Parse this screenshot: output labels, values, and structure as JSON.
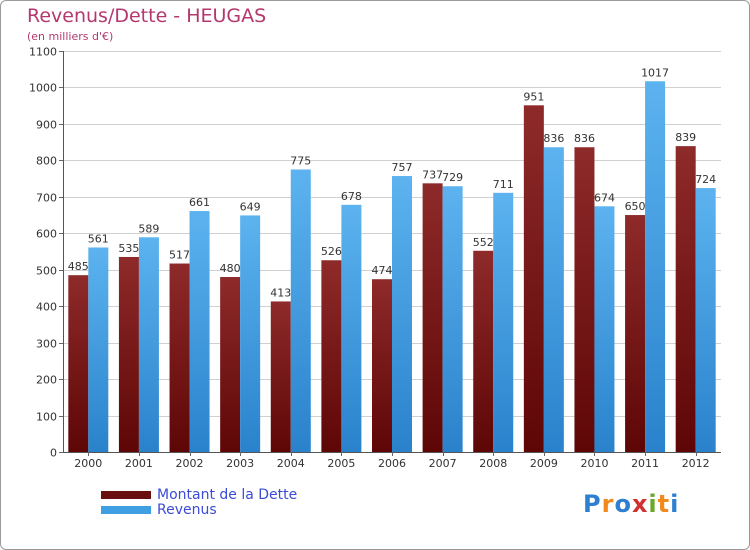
{
  "header": {
    "title": "Revenus/Dette - HEUGAS",
    "subtitle": "(en milliers d'€)"
  },
  "chart_data": {
    "type": "bar",
    "categories": [
      "2000",
      "2001",
      "2002",
      "2003",
      "2004",
      "2005",
      "2006",
      "2007",
      "2008",
      "2009",
      "2010",
      "2011",
      "2012"
    ],
    "series": [
      {
        "name": "Montant de la Dette",
        "values": [
          485,
          535,
          517,
          480,
          413,
          526,
          474,
          737,
          552,
          951,
          836,
          650,
          839
        ],
        "color": "#7a1414"
      },
      {
        "name": "Revenus",
        "values": [
          561,
          589,
          661,
          649,
          775,
          678,
          757,
          729,
          711,
          836,
          674,
          1017,
          724
        ],
        "color": "#3f9fe3"
      }
    ],
    "ylim": [
      0,
      1100
    ],
    "yticks": [
      0,
      100,
      200,
      300,
      400,
      500,
      600,
      700,
      800,
      900,
      1000,
      1100
    ],
    "grid": true,
    "legend_position": "bottom-left"
  },
  "legend": {
    "items": [
      {
        "label": "Montant de la Dette",
        "color": "#6a0f0f"
      },
      {
        "label": "Revenus",
        "color": "#3f9fe3"
      }
    ]
  },
  "logo": {
    "letters": [
      {
        "ch": "P",
        "color": "#2f7fd0"
      },
      {
        "ch": "r",
        "color": "#f08a1c"
      },
      {
        "ch": "o",
        "color": "#2f7fd0"
      },
      {
        "ch": "x",
        "color": "#d03030"
      },
      {
        "ch": "i",
        "color": "#6aa82a"
      },
      {
        "ch": "t",
        "color": "#f08a1c"
      },
      {
        "ch": "i",
        "color": "#2f7fd0"
      }
    ]
  }
}
